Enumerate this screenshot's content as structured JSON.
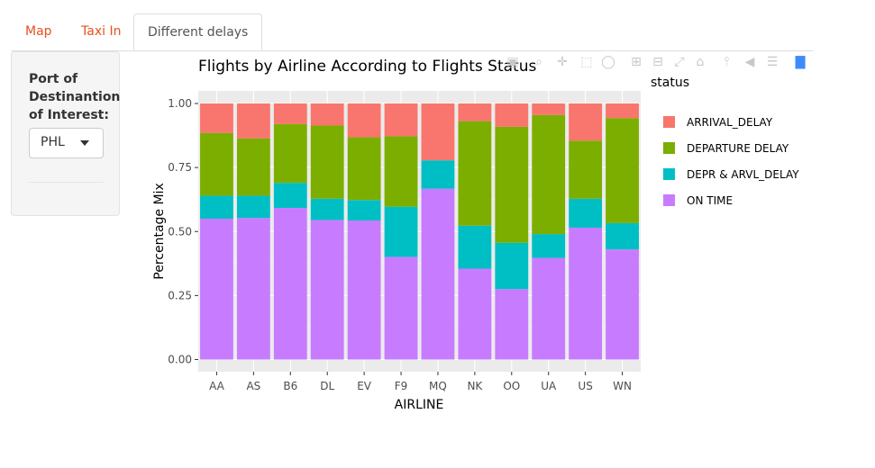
{
  "tabs": [
    {
      "label": "Map",
      "active": false
    },
    {
      "label": "Taxi In",
      "active": false
    },
    {
      "label": "Different delays",
      "active": true
    }
  ],
  "sidebar": {
    "label": "Port of Destinantion of Interest:",
    "select_value": "PHL"
  },
  "modebar": {
    "icons": [
      "camera-icon",
      "zoom-icon",
      "pan-icon",
      "box-select-icon",
      "lasso-icon",
      "zoom-in-icon",
      "zoom-out-icon",
      "autoscale-icon",
      "home-icon",
      "spike-lines-icon",
      "hover-closest-icon",
      "hover-compare-icon",
      "plotly-logo-icon"
    ]
  },
  "colors": {
    "ARRIVAL_DELAY": "#f8766d",
    "DEPARTURE DELAY": "#7cae00",
    "DEPR & ARVL_DELAY": "#00bfc4",
    "ON TIME": "#c77cff",
    "panel": "#ebebeb",
    "grid": "#ffffff"
  },
  "chart_data": {
    "type": "bar",
    "stacked": true,
    "title": "Flights by Airline According to Flights Status",
    "xlabel": "AIRLINE",
    "ylabel": "Percentage Mix",
    "ylim": [
      0,
      1.05
    ],
    "yticks": [
      "0.00",
      "0.25",
      "0.50",
      "0.75",
      "1.00"
    ],
    "ytick_values": [
      0,
      0.25,
      0.5,
      0.75,
      1.0
    ],
    "legend_title": "status",
    "legend_position": "right",
    "categories": [
      "AA",
      "AS",
      "B6",
      "DL",
      "EV",
      "F9",
      "MQ",
      "NK",
      "OO",
      "UA",
      "US",
      "WN"
    ],
    "series": [
      {
        "name": "ON TIME",
        "values": [
          0.55,
          0.553,
          0.592,
          0.545,
          0.543,
          0.401,
          0.667,
          0.355,
          0.275,
          0.397,
          0.515,
          0.43
        ]
      },
      {
        "name": "DEPR & ARVL_DELAY",
        "values": [
          0.09,
          0.087,
          0.098,
          0.083,
          0.08,
          0.196,
          0.111,
          0.168,
          0.181,
          0.093,
          0.113,
          0.103
        ]
      },
      {
        "name": "DEPARTURE DELAY",
        "values": [
          0.245,
          0.224,
          0.23,
          0.286,
          0.245,
          0.275,
          0.0,
          0.408,
          0.453,
          0.465,
          0.227,
          0.41
        ]
      },
      {
        "name": "ARRIVAL_DELAY",
        "values": [
          0.115,
          0.136,
          0.08,
          0.086,
          0.132,
          0.128,
          0.222,
          0.069,
          0.091,
          0.045,
          0.145,
          0.057
        ]
      }
    ]
  }
}
